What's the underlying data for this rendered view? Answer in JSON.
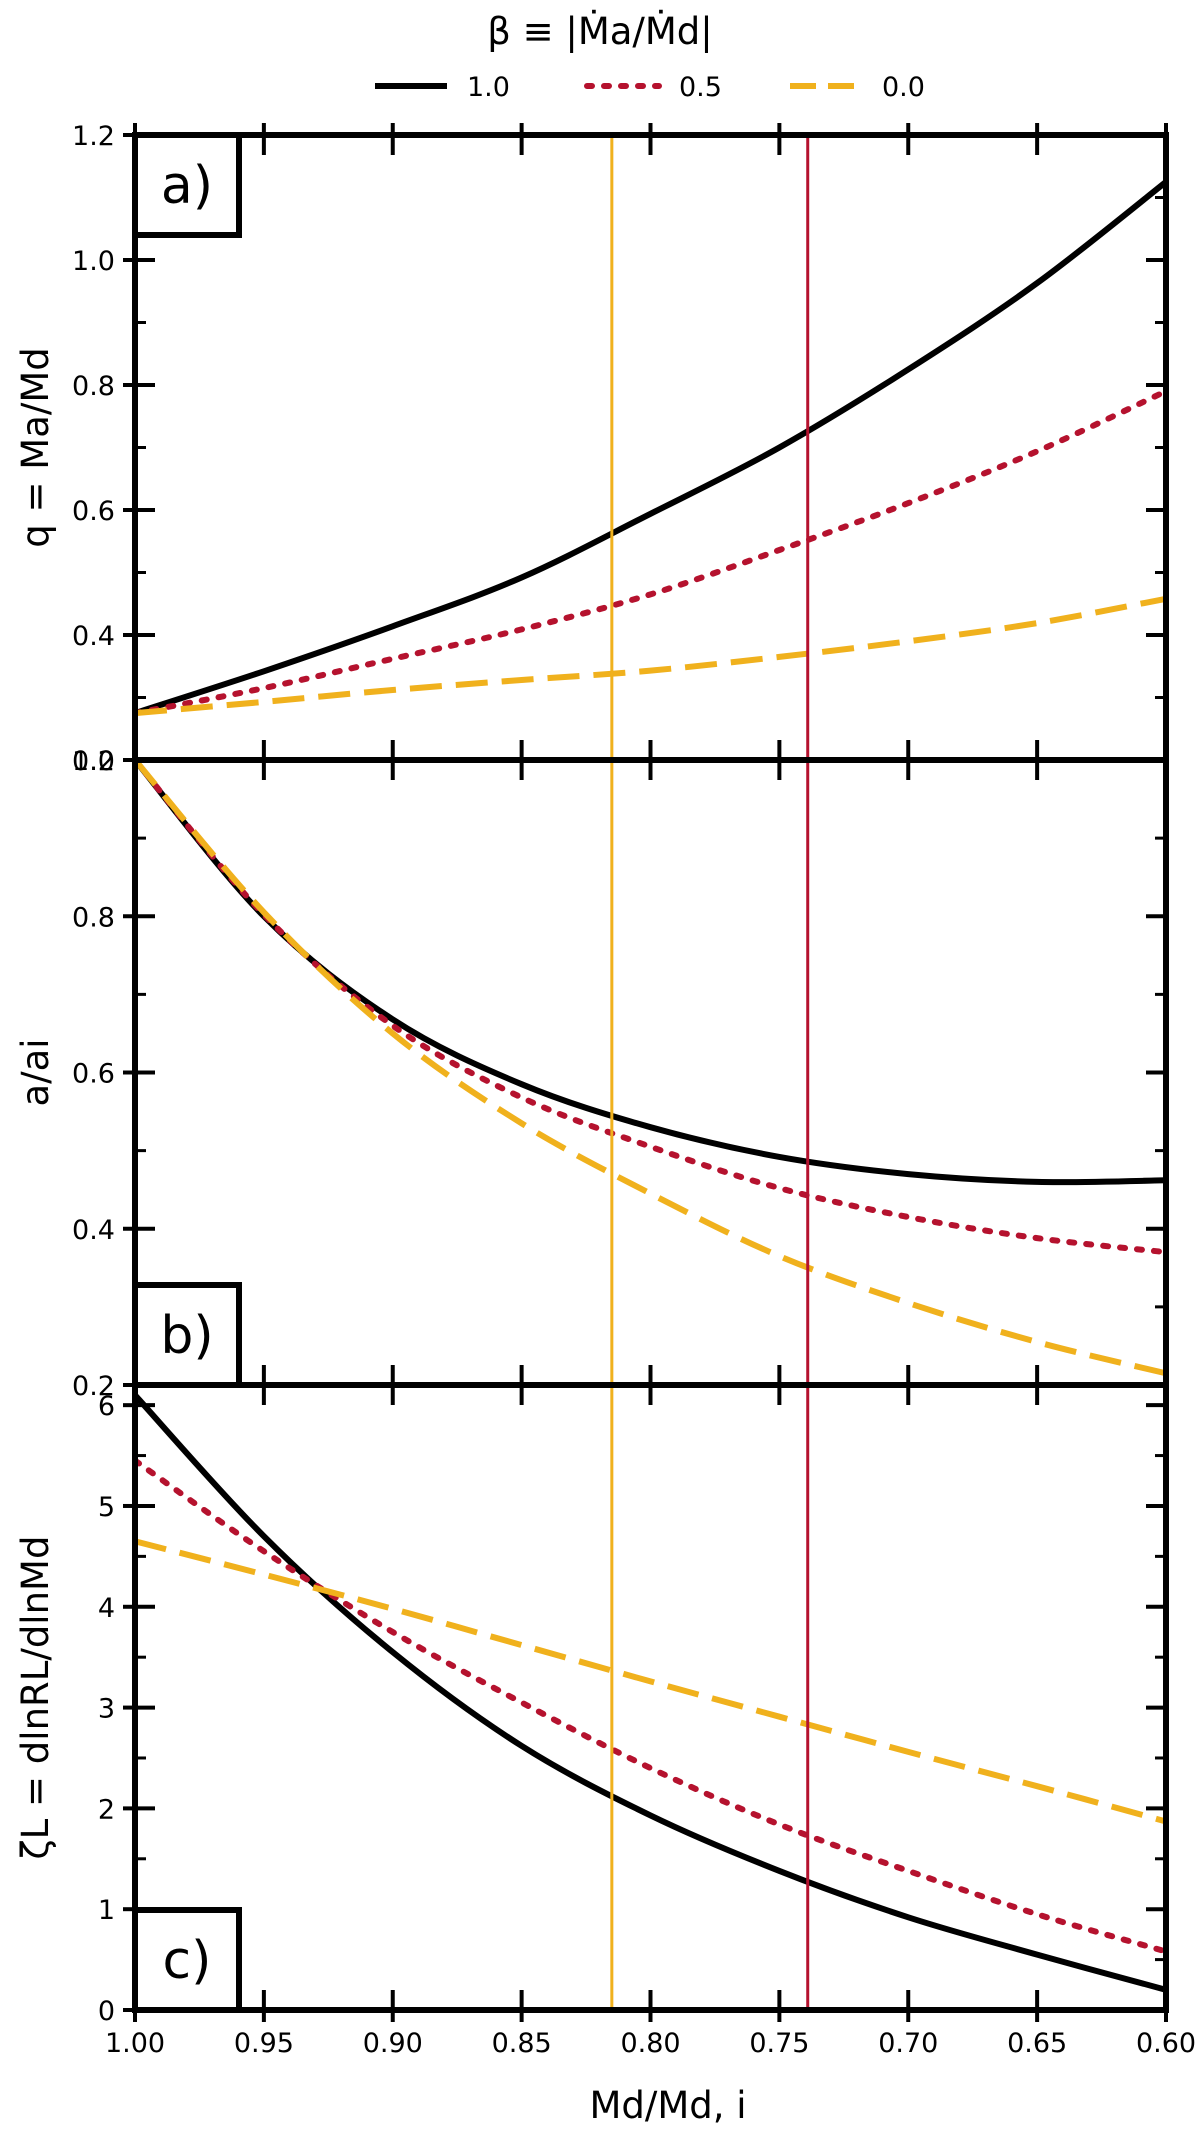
{
  "legend": {
    "title": "β ≡ |Ṁa/Ṁd|",
    "entries": [
      {
        "label": "1.0",
        "color": "#000000",
        "dash": "solid"
      },
      {
        "label": "0.5",
        "color": "#b5122e",
        "dash": "dotted"
      },
      {
        "label": "0.0",
        "color": "#f0b11d",
        "dash": "dashed"
      }
    ]
  },
  "x_axis": {
    "label": "Md/Md, i",
    "ticks": [
      "1.00",
      "0.95",
      "0.90",
      "0.85",
      "0.80",
      "0.75",
      "0.70",
      "0.65",
      "0.60"
    ],
    "range": [
      1.0,
      0.6
    ]
  },
  "vertical_lines": [
    {
      "x": 0.815,
      "color": "#f0b11d"
    },
    {
      "x": 0.739,
      "color": "#b5122e"
    }
  ],
  "chart_data": [
    {
      "type": "line",
      "panel_label": "a)",
      "ylabel": "q = Ma/Md",
      "ylim": [
        0.2,
        1.2
      ],
      "yticks": [
        "0.2",
        "0.4",
        "0.6",
        "0.8",
        "1.0",
        "1.2"
      ],
      "x": [
        1.0,
        0.95,
        0.9,
        0.85,
        0.8,
        0.75,
        0.7,
        0.65,
        0.6
      ],
      "series": [
        {
          "name": "1.0",
          "values": [
            0.275,
            0.342,
            0.414,
            0.492,
            0.594,
            0.7,
            0.825,
            0.963,
            1.125
          ]
        },
        {
          "name": "0.5",
          "values": [
            0.275,
            0.315,
            0.362,
            0.409,
            0.465,
            0.536,
            0.611,
            0.694,
            0.79
          ]
        },
        {
          "name": "0.0",
          "values": [
            0.275,
            0.293,
            0.312,
            0.328,
            0.343,
            0.365,
            0.39,
            0.419,
            0.458
          ]
        }
      ]
    },
    {
      "type": "line",
      "panel_label": "b)",
      "ylabel": "a/ai",
      "ylim": [
        0.2,
        1.0
      ],
      "yticks": [
        "0.2",
        "0.4",
        "0.6",
        "0.8",
        "1.0"
      ],
      "x": [
        1.0,
        0.95,
        0.9,
        0.85,
        0.8,
        0.75,
        0.7,
        0.65,
        0.6
      ],
      "series": [
        {
          "name": "1.0",
          "values": [
            1.0,
            0.8,
            0.668,
            0.585,
            0.53,
            0.492,
            0.47,
            0.46,
            0.462
          ]
        },
        {
          "name": "0.5",
          "values": [
            1.0,
            0.802,
            0.66,
            0.568,
            0.505,
            0.452,
            0.415,
            0.388,
            0.37
          ]
        },
        {
          "name": "0.0",
          "values": [
            1.0,
            0.805,
            0.65,
            0.535,
            0.445,
            0.365,
            0.305,
            0.255,
            0.215
          ]
        }
      ]
    },
    {
      "type": "line",
      "panel_label": "c)",
      "ylabel": "ζL = dlnRL/dlnMd",
      "ylim": [
        0,
        6.2
      ],
      "yticks": [
        "0",
        "1",
        "2",
        "3",
        "4",
        "5",
        "6"
      ],
      "x": [
        1.0,
        0.95,
        0.9,
        0.85,
        0.8,
        0.75,
        0.7,
        0.65,
        0.6
      ],
      "series": [
        {
          "name": "1.0",
          "values": [
            6.1,
            4.7,
            3.55,
            2.62,
            1.93,
            1.38,
            0.92,
            0.55,
            0.2
          ]
        },
        {
          "name": "0.5",
          "values": [
            5.45,
            4.55,
            3.75,
            3.05,
            2.4,
            1.84,
            1.38,
            0.95,
            0.58
          ]
        },
        {
          "name": "0.0",
          "values": [
            4.65,
            4.32,
            3.98,
            3.62,
            3.26,
            2.91,
            2.56,
            2.22,
            1.87
          ]
        }
      ]
    }
  ]
}
